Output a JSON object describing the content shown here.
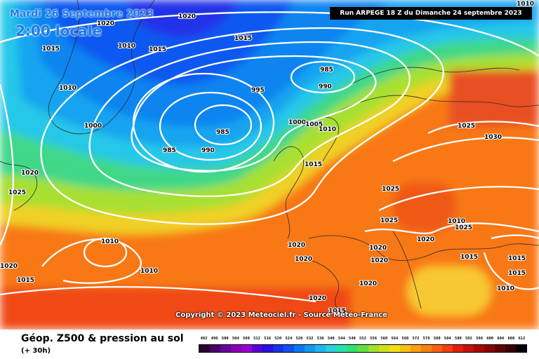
{
  "header": {
    "date": "Mardi 26 Septembre 2023",
    "time": "2:00 locale",
    "run": "Run ARPEGE 18 Z du Dimanche 24 septembre 2023"
  },
  "footer": {
    "field_title": "Géop. Z500 & pression au sol",
    "lead_time": "(+ 30h)",
    "copyright": "Copyright © 2023 Meteociel.fr - Source Météo-France"
  },
  "legend": {
    "scale": [
      "492",
      "496",
      "500",
      "504",
      "508",
      "512",
      "516",
      "520",
      "524",
      "528",
      "532",
      "536",
      "540",
      "544",
      "548",
      "552",
      "556",
      "560",
      "564",
      "568",
      "572",
      "576",
      "580",
      "584",
      "588",
      "592",
      "596",
      "600",
      "604",
      "608",
      "612"
    ],
    "colors": [
      "#2a0033",
      "#4a0066",
      "#6a0099",
      "#8a00b8",
      "#9a00d0",
      "#5a00d8",
      "#2a10e0",
      "#1a30e8",
      "#1050f0",
      "#0a78f0",
      "#1298f0",
      "#20b4f0",
      "#2ad0e0",
      "#2ae0b0",
      "#30e070",
      "#60e040",
      "#a0e030",
      "#d0e020",
      "#f0e010",
      "#f8c010",
      "#f8a010",
      "#f88010",
      "#f86010",
      "#f04010",
      "#e02010",
      "#c81010",
      "#a80808",
      "#880404",
      "#600202",
      "#380101",
      "#000000"
    ]
  },
  "isobars": [
    {
      "label": "1020",
      "side": "map"
    },
    {
      "label": "1015",
      "side": "map"
    },
    {
      "label": "1010",
      "side": "map"
    },
    {
      "label": "1005",
      "side": "map"
    },
    {
      "label": "1000",
      "side": "map"
    },
    {
      "label": "995",
      "side": "map"
    },
    {
      "label": "990",
      "side": "map"
    },
    {
      "label": "985",
      "side": "map"
    },
    {
      "label": "1025",
      "side": "map"
    },
    {
      "label": "1030",
      "side": "map"
    }
  ],
  "map_labels": [
    "1020",
    "1020",
    "1015",
    "1010",
    "1015",
    "1015",
    "1010",
    "985",
    "990",
    "995",
    "1000",
    "985",
    "990",
    "985",
    "1000",
    "1005",
    "1010",
    "1015",
    "1025",
    "1030",
    "1020",
    "1025",
    "1010",
    "1015",
    "1020",
    "1010",
    "1020",
    "1020",
    "1020",
    "1025",
    "1025",
    "1025",
    "1020",
    "1020",
    "1015",
    "1010",
    "1015",
    "1020",
    "1020",
    "1015",
    "1010",
    "1010",
    "1015"
  ]
}
